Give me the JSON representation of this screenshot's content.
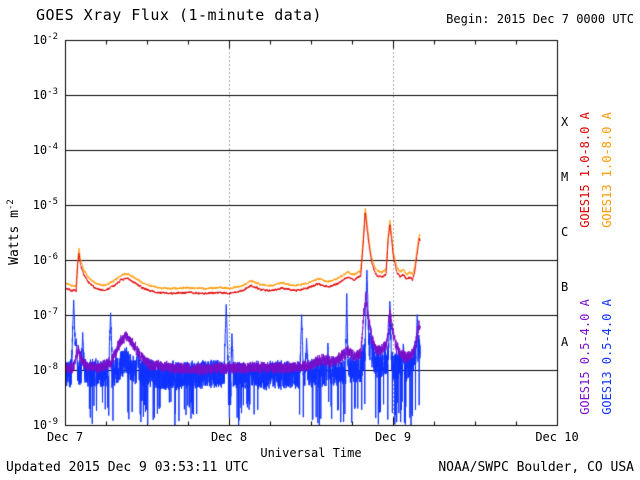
{
  "header": {
    "title": "GOES Xray Flux (1-minute data)",
    "begin": "Begin: 2015 Dec 7 0000 UTC"
  },
  "footer": {
    "updated": "Updated 2015 Dec 9 03:53:11 UTC",
    "source": "NOAA/SWPC Boulder, CO USA"
  },
  "chart_data": {
    "type": "line",
    "title": "GOES Xray Flux (1-minute data)",
    "xlabel": "Universal Time",
    "ylabel": "Watts m-2",
    "ylabel_base": "Watts m",
    "ylabel_exp": "-2",
    "x_ticks": [
      "Dec 7",
      "Dec 8",
      "Dec 9",
      "Dec 10"
    ],
    "x_range_days": [
      0,
      3
    ],
    "y_exponent_range": [
      -2,
      -9
    ],
    "y_tick_exponents": [
      -2,
      -3,
      -4,
      -5,
      -6,
      -7,
      -8,
      -9
    ],
    "flare_classes": [
      {
        "label": "X",
        "center_exp": -3.5
      },
      {
        "label": "M",
        "center_exp": -4.5
      },
      {
        "label": "C",
        "center_exp": -5.5
      },
      {
        "label": "B",
        "center_exp": -6.5
      },
      {
        "label": "A",
        "center_exp": -7.5
      }
    ],
    "grid": true,
    "legend_position": "right-rotated",
    "data_end_day": 2.162,
    "noise_seed": 7,
    "series": [
      {
        "name": "GOES15 1.0-8.0 A",
        "color": "#e00000",
        "noise_amp": 0.035,
        "noise_smooth": 0.6,
        "control_points_log10": [
          [
            0.0,
            -6.5
          ],
          [
            0.04,
            -6.55
          ],
          [
            0.065,
            -6.55
          ],
          [
            0.075,
            -6.05
          ],
          [
            0.082,
            -5.88
          ],
          [
            0.09,
            -6.05
          ],
          [
            0.11,
            -6.25
          ],
          [
            0.14,
            -6.4
          ],
          [
            0.18,
            -6.5
          ],
          [
            0.24,
            -6.55
          ],
          [
            0.3,
            -6.45
          ],
          [
            0.34,
            -6.35
          ],
          [
            0.38,
            -6.33
          ],
          [
            0.42,
            -6.4
          ],
          [
            0.47,
            -6.5
          ],
          [
            0.55,
            -6.58
          ],
          [
            0.65,
            -6.6
          ],
          [
            0.75,
            -6.58
          ],
          [
            0.85,
            -6.6
          ],
          [
            0.95,
            -6.58
          ],
          [
            1.0,
            -6.6
          ],
          [
            1.08,
            -6.55
          ],
          [
            1.13,
            -6.45
          ],
          [
            1.18,
            -6.52
          ],
          [
            1.25,
            -6.55
          ],
          [
            1.32,
            -6.5
          ],
          [
            1.4,
            -6.55
          ],
          [
            1.48,
            -6.5
          ],
          [
            1.54,
            -6.42
          ],
          [
            1.6,
            -6.48
          ],
          [
            1.66,
            -6.42
          ],
          [
            1.72,
            -6.3
          ],
          [
            1.76,
            -6.35
          ],
          [
            1.8,
            -6.28
          ],
          [
            1.815,
            -5.7
          ],
          [
            1.828,
            -5.12
          ],
          [
            1.838,
            -5.4
          ],
          [
            1.852,
            -5.75
          ],
          [
            1.868,
            -6.05
          ],
          [
            1.885,
            -6.2
          ],
          [
            1.9,
            -6.28
          ],
          [
            1.93,
            -6.3
          ],
          [
            1.955,
            -6.25
          ],
          [
            1.968,
            -5.6
          ],
          [
            1.978,
            -5.35
          ],
          [
            1.988,
            -5.6
          ],
          [
            2.0,
            -5.95
          ],
          [
            2.02,
            -6.2
          ],
          [
            2.04,
            -6.3
          ],
          [
            2.06,
            -6.25
          ],
          [
            2.08,
            -6.35
          ],
          [
            2.1,
            -6.3
          ],
          [
            2.115,
            -6.35
          ],
          [
            2.13,
            -6.2
          ],
          [
            2.145,
            -5.85
          ],
          [
            2.158,
            -5.6
          ],
          [
            2.162,
            -5.65
          ]
        ]
      },
      {
        "name": "GOES13 1.0-8.0 A",
        "color": "#ff9900",
        "noise_amp": 0.035,
        "noise_smooth": 0.6,
        "control_ref": 0,
        "offset": 0.09
      },
      {
        "name": "GOES15 0.5-4.0 A",
        "color": "#7a11c9",
        "noise_amp": 0.13,
        "noise_smooth": 0.3,
        "control_points_log10": [
          [
            0.0,
            -7.95
          ],
          [
            0.05,
            -7.95
          ],
          [
            0.075,
            -7.6
          ],
          [
            0.09,
            -7.75
          ],
          [
            0.12,
            -7.9
          ],
          [
            0.2,
            -7.95
          ],
          [
            0.28,
            -7.85
          ],
          [
            0.33,
            -7.5
          ],
          [
            0.37,
            -7.38
          ],
          [
            0.41,
            -7.5
          ],
          [
            0.46,
            -7.75
          ],
          [
            0.52,
            -7.9
          ],
          [
            0.65,
            -7.95
          ],
          [
            0.8,
            -7.98
          ],
          [
            1.0,
            -7.95
          ],
          [
            1.2,
            -7.95
          ],
          [
            1.35,
            -7.95
          ],
          [
            1.5,
            -7.9
          ],
          [
            1.56,
            -7.8
          ],
          [
            1.64,
            -7.85
          ],
          [
            1.72,
            -7.65
          ],
          [
            1.76,
            -7.75
          ],
          [
            1.8,
            -7.7
          ],
          [
            1.818,
            -7.0
          ],
          [
            1.832,
            -6.62
          ],
          [
            1.845,
            -7.0
          ],
          [
            1.865,
            -7.4
          ],
          [
            1.89,
            -7.6
          ],
          [
            1.92,
            -7.65
          ],
          [
            1.96,
            -7.5
          ],
          [
            1.978,
            -6.9
          ],
          [
            1.99,
            -7.2
          ],
          [
            2.01,
            -7.5
          ],
          [
            2.04,
            -7.7
          ],
          [
            2.08,
            -7.75
          ],
          [
            2.12,
            -7.7
          ],
          [
            2.14,
            -7.45
          ],
          [
            2.155,
            -7.15
          ],
          [
            2.162,
            -7.2
          ]
        ]
      },
      {
        "name": "GOES13 0.5-4.0 A",
        "color": "#1133ff",
        "noise_amp": 0.28,
        "noise_smooth": 0.1,
        "control_points_log10": [
          [
            0.0,
            -8.05
          ],
          [
            0.3,
            -8.05
          ],
          [
            0.36,
            -7.8
          ],
          [
            0.42,
            -8.0
          ],
          [
            0.6,
            -8.1
          ],
          [
            0.9,
            -8.05
          ],
          [
            1.2,
            -8.1
          ],
          [
            1.5,
            -8.05
          ],
          [
            1.72,
            -8.0
          ],
          [
            1.8,
            -7.95
          ],
          [
            1.84,
            -7.5
          ],
          [
            1.9,
            -7.9
          ],
          [
            1.97,
            -7.8
          ],
          [
            2.0,
            -7.9
          ],
          [
            2.1,
            -7.95
          ],
          [
            2.14,
            -7.6
          ],
          [
            2.162,
            -7.6
          ]
        ],
        "spikes": [
          [
            0.05,
            -6.72,
            0.015
          ],
          [
            0.065,
            -7.4,
            0.01
          ],
          [
            0.105,
            -7.3,
            0.01
          ],
          [
            0.275,
            -6.95,
            0.012
          ],
          [
            0.44,
            -7.6,
            0.008
          ],
          [
            0.98,
            -6.78,
            0.012
          ],
          [
            1.015,
            -7.3,
            0.008
          ],
          [
            1.44,
            -6.95,
            0.01
          ],
          [
            1.47,
            -7.4,
            0.008
          ],
          [
            1.6,
            -7.5,
            0.006
          ],
          [
            1.715,
            -6.55,
            0.008
          ],
          [
            1.838,
            -6.15,
            0.012
          ],
          [
            1.862,
            -7.2,
            0.006
          ],
          [
            1.978,
            -6.72,
            0.01
          ],
          [
            2.06,
            -7.5,
            0.006
          ],
          [
            2.145,
            -6.95,
            0.008
          ]
        ],
        "dropouts": {
          "windows": [
            [
              0.14,
              0.3
            ],
            [
              0.38,
              0.8
            ],
            [
              0.98,
              1.22
            ],
            [
              1.42,
              2.162
            ]
          ],
          "prob": 0.06,
          "floor": -8.55,
          "depth": 0.45
        }
      }
    ]
  }
}
